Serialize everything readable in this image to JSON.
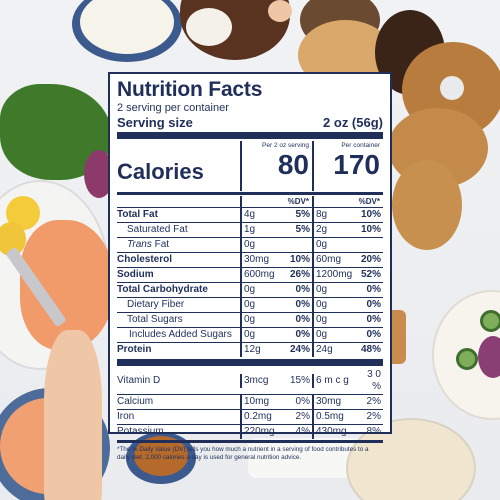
{
  "label": {
    "title": "Nutrition Facts",
    "servings": "2 serving per container",
    "serving_size_label": "Serving size",
    "serving_size_value": "2 oz (56g)",
    "calories_label": "Calories",
    "col1_header": "Per 2 oz serving",
    "col2_header": "Per container",
    "calories_col1": "80",
    "calories_col2": "170",
    "dv_header": "%DV*",
    "nutrients": [
      {
        "name": "Total Fat",
        "a1": "4g",
        "p1": "5%",
        "a2": "8g",
        "p2": "10%"
      },
      {
        "name": "Saturated Fat",
        "a1": "1g",
        "p1": "5%",
        "a2": "2g",
        "p2": "10%"
      },
      {
        "name": "Trans",
        "name2": " Fat",
        "a1": "0g",
        "p1": "",
        "a2": "0g",
        "p2": ""
      },
      {
        "name": "Cholesterol",
        "a1": "30mg",
        "p1": "10%",
        "a2": "60mg",
        "p2": "20%"
      },
      {
        "name": "Sodium",
        "a1": "600mg",
        "p1": "26%",
        "a2": "1200mg",
        "p2": "52%"
      },
      {
        "name": "Total Carbohydrate",
        "a1": "0g",
        "p1": "0%",
        "a2": "0g",
        "p2": "0%"
      },
      {
        "name": "Dietary Fiber",
        "a1": "0g",
        "p1": "0%",
        "a2": "0g",
        "p2": "0%"
      },
      {
        "name": "Total Sugars",
        "a1": "0g",
        "p1": "0%",
        "a2": "0g",
        "p2": "0%"
      },
      {
        "name": "Includes Added Sugars",
        "a1": "0g",
        "p1": "0%",
        "a2": "0g",
        "p2": "0%"
      },
      {
        "name": "Protein",
        "a1": "12g",
        "p1": "24%",
        "a2": "24g",
        "p2": "48%"
      }
    ],
    "vitamins": [
      {
        "name": "Vitamin D",
        "a1": "3mcg",
        "p1": "15%",
        "a2": "6 m c g",
        "p2": "3 0 %"
      },
      {
        "name": "Calcium",
        "a1": "10mg",
        "p1": "0%",
        "a2": "30mg",
        "p2": "2%"
      },
      {
        "name": "Iron",
        "a1": "0.2mg",
        "p1": "2%",
        "a2": "0.5mg",
        "p2": "2%"
      },
      {
        "name": "Potassium",
        "a1": "220mg",
        "p1": "4%",
        "a2": "430mg",
        "p2": "8%"
      }
    ],
    "footnote": "*The % Daily Value (DV) tells you how much a nutrient in a serving of food contributes to a daily diet. 2,000 calories a day is used for general nutrition advice."
  },
  "colors": {
    "label_ink": "#1f2f5a",
    "label_bg": "#ffffff"
  }
}
